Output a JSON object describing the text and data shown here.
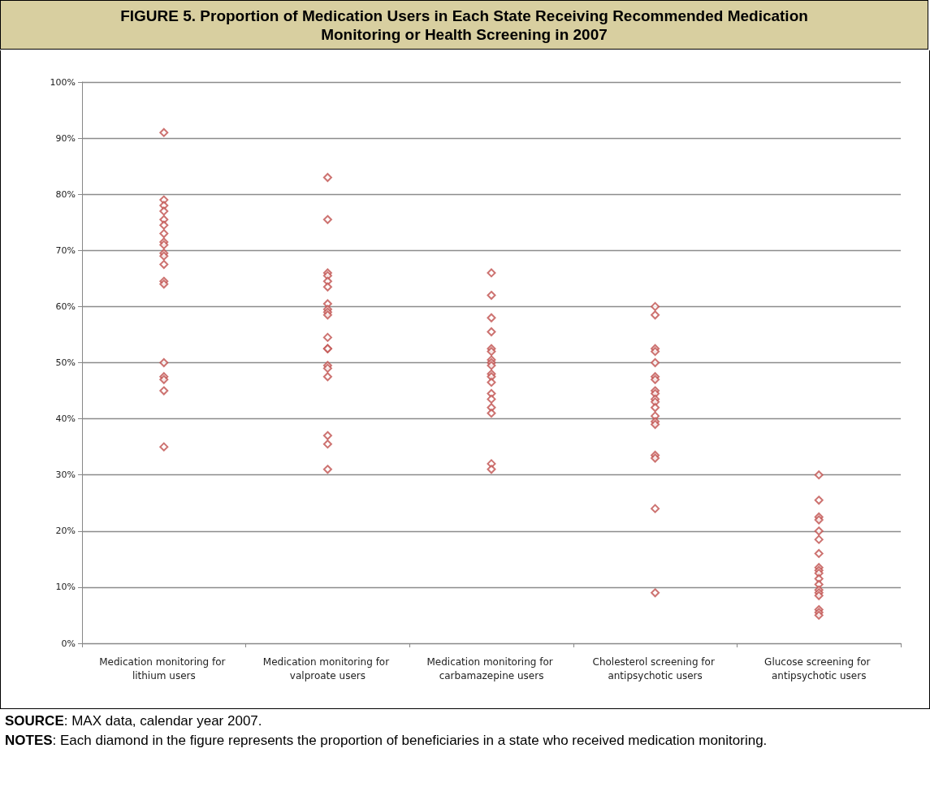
{
  "chart_data": {
    "type": "scatter",
    "title": "FIGURE 5. Proportion of Medication Users in Each State Receiving Recommended Medication Monitoring or Health Screening in 2007",
    "categories": [
      "Medication monitoring for lithium users",
      "Medication monitoring for valproate users",
      "Medication monitoring for carbamazepine users",
      "Cholesterol screening for antipsychotic users",
      "Glucose screening for antipsychotic users"
    ],
    "series": [
      {
        "color": "#c0504d",
        "x": [
          "Medication monitoring for lithium users",
          "Medication monitoring for lithium users",
          "Medication monitoring for lithium users",
          "Medication monitoring for lithium users",
          "Medication monitoring for lithium users",
          "Medication monitoring for lithium users",
          "Medication monitoring for lithium users",
          "Medication monitoring for lithium users",
          "Medication monitoring for lithium users",
          "Medication monitoring for lithium users",
          "Medication monitoring for lithium users",
          "Medication monitoring for lithium users",
          "Medication monitoring for lithium users",
          "Medication monitoring for lithium users",
          "Medication monitoring for lithium users",
          "Medication monitoring for lithium users",
          "Medication monitoring for lithium users",
          "Medication monitoring for lithium users",
          "Medication monitoring for lithium users",
          "Medication monitoring for valproate users",
          "Medication monitoring for valproate users",
          "Medication monitoring for valproate users",
          "Medication monitoring for valproate users",
          "Medication monitoring for valproate users",
          "Medication monitoring for valproate users",
          "Medication monitoring for valproate users",
          "Medication monitoring for valproate users",
          "Medication monitoring for valproate users",
          "Medication monitoring for valproate users",
          "Medication monitoring for valproate users",
          "Medication monitoring for valproate users",
          "Medication monitoring for valproate users",
          "Medication monitoring for valproate users",
          "Medication monitoring for valproate users",
          "Medication monitoring for valproate users",
          "Medication monitoring for valproate users",
          "Medication monitoring for valproate users",
          "Medication monitoring for valproate users",
          "Medication monitoring for carbamazepine users",
          "Medication monitoring for carbamazepine users",
          "Medication monitoring for carbamazepine users",
          "Medication monitoring for carbamazepine users",
          "Medication monitoring for carbamazepine users",
          "Medication monitoring for carbamazepine users",
          "Medication monitoring for carbamazepine users",
          "Medication monitoring for carbamazepine users",
          "Medication monitoring for carbamazepine users",
          "Medication monitoring for carbamazepine users",
          "Medication monitoring for carbamazepine users",
          "Medication monitoring for carbamazepine users",
          "Medication monitoring for carbamazepine users",
          "Medication monitoring for carbamazepine users",
          "Medication monitoring for carbamazepine users",
          "Medication monitoring for carbamazepine users",
          "Medication monitoring for carbamazepine users",
          "Medication monitoring for carbamazepine users",
          "Cholesterol screening for antipsychotic users",
          "Cholesterol screening for antipsychotic users",
          "Cholesterol screening for antipsychotic users",
          "Cholesterol screening for antipsychotic users",
          "Cholesterol screening for antipsychotic users",
          "Cholesterol screening for antipsychotic users",
          "Cholesterol screening for antipsychotic users",
          "Cholesterol screening for antipsychotic users",
          "Cholesterol screening for antipsychotic users",
          "Cholesterol screening for antipsychotic users",
          "Cholesterol screening for antipsychotic users",
          "Cholesterol screening for antipsychotic users",
          "Cholesterol screening for antipsychotic users",
          "Cholesterol screening for antipsychotic users",
          "Cholesterol screening for antipsychotic users",
          "Cholesterol screening for antipsychotic users",
          "Cholesterol screening for antipsychotic users",
          "Cholesterol screening for antipsychotic users",
          "Cholesterol screening for antipsychotic users",
          "Glucose screening for antipsychotic users",
          "Glucose screening for antipsychotic users",
          "Glucose screening for antipsychotic users",
          "Glucose screening for antipsychotic users",
          "Glucose screening for antipsychotic users",
          "Glucose screening for antipsychotic users",
          "Glucose screening for antipsychotic users",
          "Glucose screening for antipsychotic users",
          "Glucose screening for antipsychotic users",
          "Glucose screening for antipsychotic users",
          "Glucose screening for antipsychotic users",
          "Glucose screening for antipsychotic users",
          "Glucose screening for antipsychotic users",
          "Glucose screening for antipsychotic users",
          "Glucose screening for antipsychotic users",
          "Glucose screening for antipsychotic users",
          "Glucose screening for antipsychotic users",
          "Glucose screening for antipsychotic users"
        ],
        "values": [
          91,
          79,
          78,
          77,
          75.5,
          74.5,
          73,
          71.5,
          71,
          69.5,
          69,
          67.5,
          64.5,
          64,
          50,
          47.5,
          47,
          45,
          35,
          83,
          75.5,
          66,
          65.5,
          64.5,
          63.5,
          60.5,
          59.5,
          59,
          58.5,
          54.5,
          52.5,
          52.5,
          49.5,
          49,
          47.5,
          37,
          35.5,
          31,
          66,
          62,
          58,
          55.5,
          52.5,
          52,
          50.5,
          50,
          49.5,
          48,
          47.5,
          46.5,
          44.5,
          43.5,
          42,
          41,
          32,
          31,
          60,
          58.5,
          52.5,
          52,
          50,
          47.5,
          47,
          45,
          44.5,
          43.5,
          43,
          42,
          40.5,
          39.5,
          39,
          33.5,
          33,
          24,
          9,
          30,
          25.5,
          22.5,
          22,
          20,
          18.5,
          16,
          13.5,
          13,
          12.5,
          11.5,
          10.5,
          9.5,
          9,
          8.5,
          6,
          5.5,
          5
        ]
      }
    ],
    "ylim": [
      0,
      100
    ],
    "yticks": [
      {
        "value": 0,
        "label": "0%"
      },
      {
        "value": 10,
        "label": "10%"
      },
      {
        "value": 20,
        "label": "20%"
      },
      {
        "value": 30,
        "label": "30%"
      },
      {
        "value": 40,
        "label": "40%"
      },
      {
        "value": 50,
        "label": "50%"
      },
      {
        "value": 60,
        "label": "60%"
      },
      {
        "value": 70,
        "label": "70%"
      },
      {
        "value": 80,
        "label": "80%"
      },
      {
        "value": 90,
        "label": "90%"
      },
      {
        "value": 100,
        "label": "100%"
      }
    ],
    "grid": "y",
    "marker": "diamond",
    "annotations": [
      "SOURCE: MAX data, calendar year 2007.",
      "NOTES: Each diamond in the figure represents the proportion of beneficiaries in a state who received medication monitoring."
    ]
  }
}
